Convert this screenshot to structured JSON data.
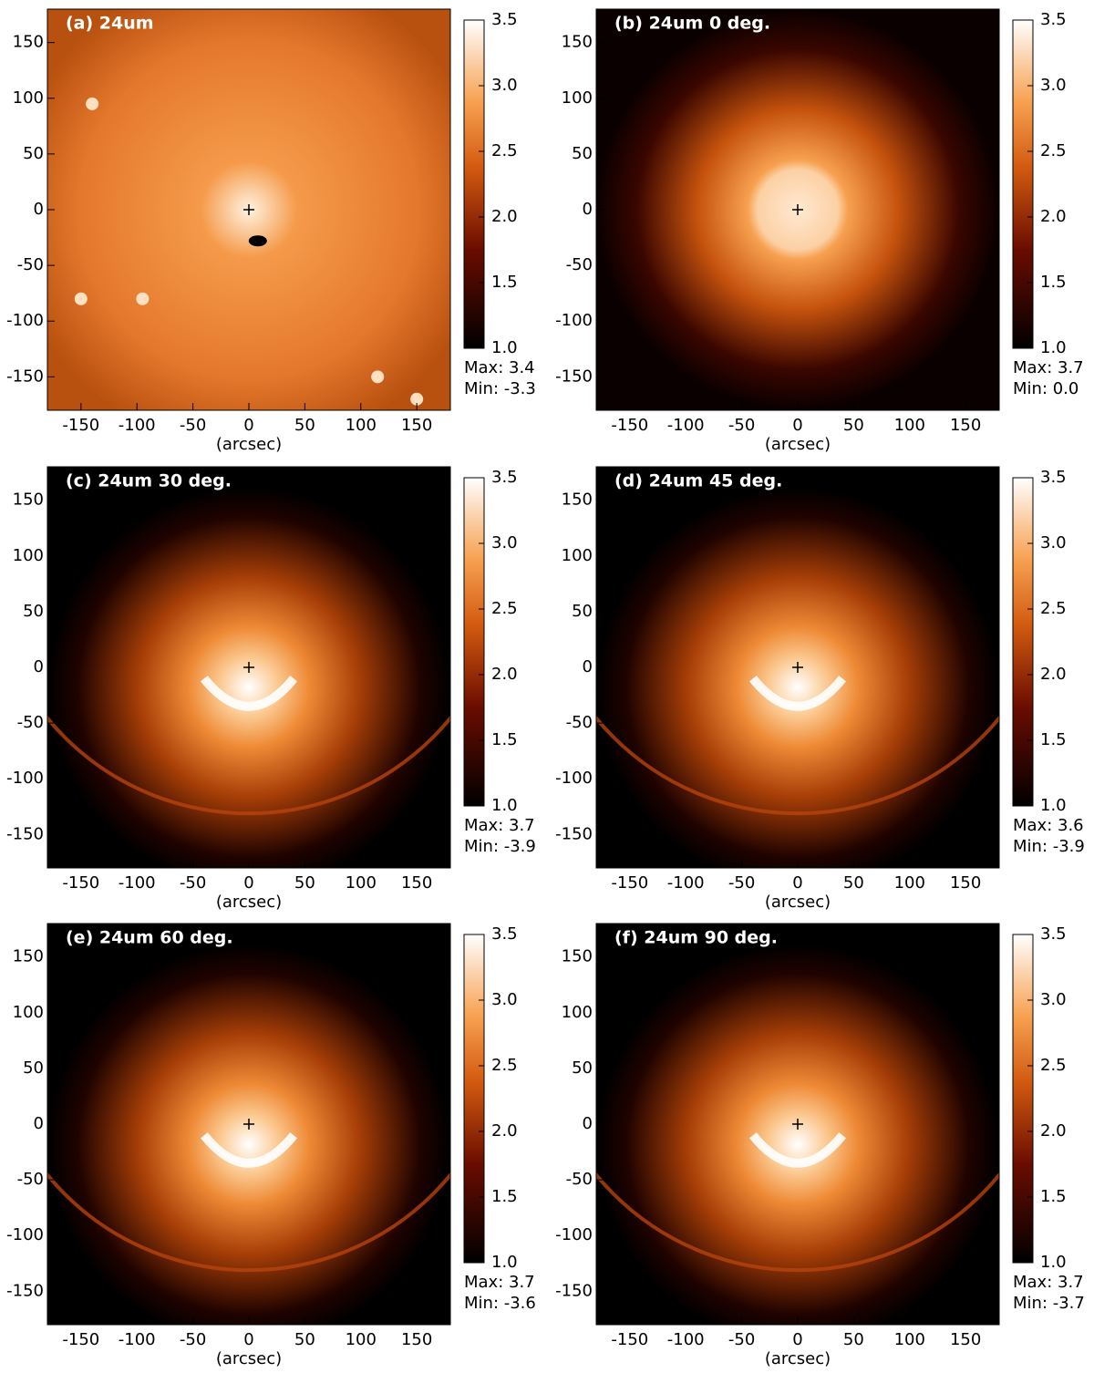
{
  "chart_data": [
    {
      "type": "image",
      "title": "(a) 24um",
      "xlabel": "(arcsec)",
      "xlim": [
        -180,
        180
      ],
      "ylim": [
        -180,
        180
      ],
      "xticks": [
        -150,
        -100,
        -50,
        0,
        50,
        100,
        150
      ],
      "yticks": [
        -150,
        -100,
        -50,
        0,
        50,
        100,
        150
      ],
      "clim": [
        1,
        3.5
      ],
      "cticks": [
        {
          "value": 1,
          "label": "1.0"
        },
        1.5,
        {
          "value": 2,
          "label": "2.0"
        },
        2.5,
        {
          "value": 3,
          "label": "3.0"
        },
        3.5
      ],
      "stats": [
        "Max: 3.4",
        "Min: -3.3"
      ]
    },
    {
      "type": "image",
      "title": "(b) 24um 0 deg.",
      "xlabel": "(arcsec)",
      "xlim": [
        -180,
        180
      ],
      "ylim": [
        -180,
        180
      ],
      "xticks": [
        -150,
        -100,
        -50,
        0,
        50,
        100,
        150
      ],
      "yticks": [
        -150,
        -100,
        -50,
        0,
        50,
        100,
        150
      ],
      "clim": [
        1,
        3.5
      ],
      "cticks": [
        {
          "value": 1,
          "label": "1.0"
        },
        1.5,
        {
          "value": 2,
          "label": "2.0"
        },
        2.5,
        {
          "value": 3,
          "label": "3.0"
        },
        3.5
      ],
      "stats": [
        "Max: 3.7",
        "Min: 0.0"
      ]
    },
    {
      "type": "image",
      "title": "(c) 24um 30 deg.",
      "xlabel": "(arcsec)",
      "xlim": [
        -180,
        180
      ],
      "ylim": [
        -180,
        180
      ],
      "xticks": [
        -150,
        -100,
        -50,
        0,
        50,
        100,
        150
      ],
      "yticks": [
        -150,
        -100,
        -50,
        0,
        50,
        100,
        150
      ],
      "clim": [
        1,
        3.5
      ],
      "cticks": [
        {
          "value": 1,
          "label": "1.0"
        },
        1.5,
        {
          "value": 2,
          "label": "2.0"
        },
        2.5,
        {
          "value": 3,
          "label": "3.0"
        },
        3.5
      ],
      "stats": [
        "Max: 3.7",
        "Min: -3.9"
      ]
    },
    {
      "type": "image",
      "title": "(d) 24um 45 deg.",
      "xlabel": "(arcsec)",
      "xlim": [
        -180,
        180
      ],
      "ylim": [
        -180,
        180
      ],
      "xticks": [
        -150,
        -100,
        -50,
        0,
        50,
        100,
        150
      ],
      "yticks": [
        -150,
        -100,
        -50,
        0,
        50,
        100,
        150
      ],
      "clim": [
        1,
        3.5
      ],
      "cticks": [
        {
          "value": 1,
          "label": "1.0"
        },
        1.5,
        {
          "value": 2,
          "label": "2.0"
        },
        2.5,
        {
          "value": 3,
          "label": "3.0"
        },
        3.5
      ],
      "stats": [
        "Max: 3.6",
        "Min: -3.9"
      ]
    },
    {
      "type": "image",
      "title": "(e) 24um 60 deg.",
      "xlabel": "(arcsec)",
      "xlim": [
        -180,
        180
      ],
      "ylim": [
        -180,
        180
      ],
      "xticks": [
        -150,
        -100,
        -50,
        0,
        50,
        100,
        150
      ],
      "yticks": [
        -150,
        -100,
        -50,
        0,
        50,
        100,
        150
      ],
      "clim": [
        1,
        3.5
      ],
      "cticks": [
        {
          "value": 1,
          "label": "1.0"
        },
        1.5,
        {
          "value": 2,
          "label": "2.0"
        },
        2.5,
        {
          "value": 3,
          "label": "3.0"
        },
        3.5
      ],
      "stats": [
        "Max: 3.7",
        "Min: -3.6"
      ]
    },
    {
      "type": "image",
      "title": "(f) 24um 90 deg.",
      "xlabel": "(arcsec)",
      "xlim": [
        -180,
        180
      ],
      "ylim": [
        -180,
        180
      ],
      "xticks": [
        -150,
        -100,
        -50,
        0,
        50,
        100,
        150
      ],
      "yticks": [
        -150,
        -100,
        -50,
        0,
        50,
        100,
        150
      ],
      "clim": [
        1,
        3.5
      ],
      "cticks": [
        {
          "value": 1,
          "label": "1.0"
        },
        1.5,
        {
          "value": 2,
          "label": "2.0"
        },
        2.5,
        {
          "value": 3,
          "label": "3.0"
        },
        3.5
      ],
      "stats": [
        "Max: 3.7",
        "Min: -3.7"
      ]
    }
  ]
}
